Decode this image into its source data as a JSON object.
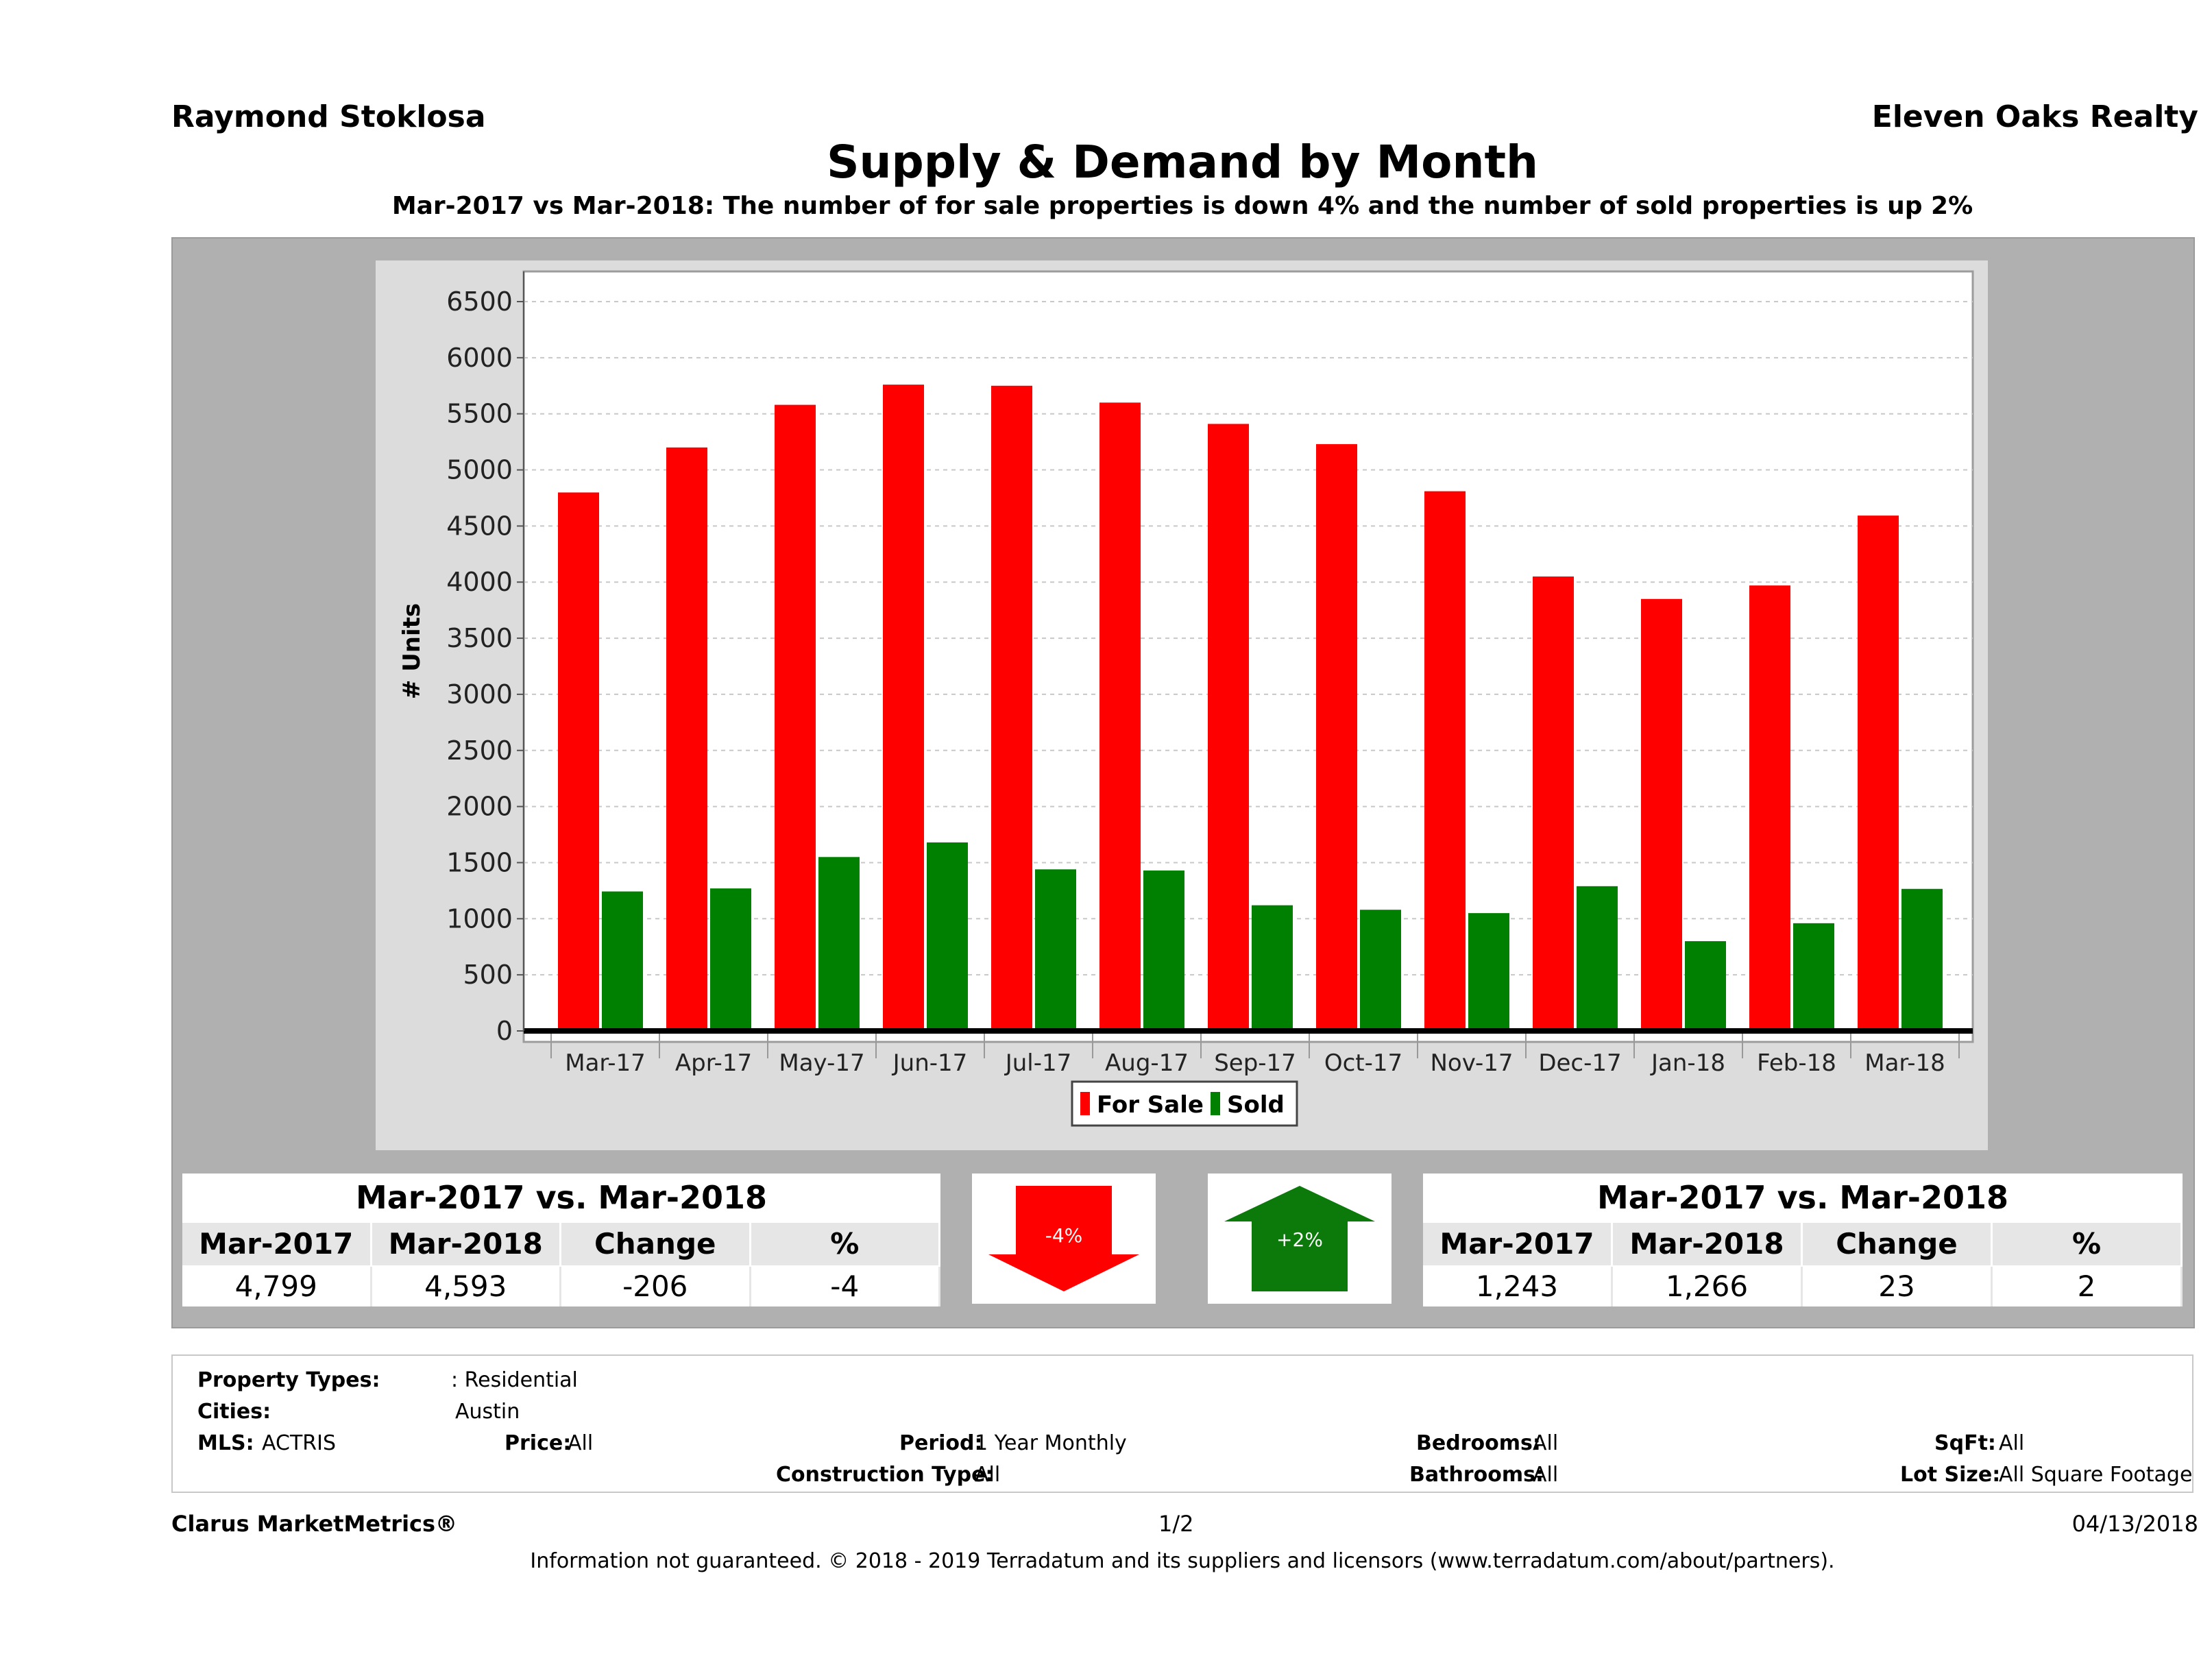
{
  "header": {
    "agent": "Raymond Stoklosa",
    "company": "Eleven Oaks Realty",
    "title": "Supply & Demand by Month",
    "subtitle": "Mar-2017 vs Mar-2018: The number of for sale properties is down 4% and the number of sold properties is up 2%"
  },
  "chart_data": {
    "type": "bar",
    "categories": [
      "Mar-17",
      "Apr-17",
      "May-17",
      "Jun-17",
      "Jul-17",
      "Aug-17",
      "Sep-17",
      "Oct-17",
      "Nov-17",
      "Dec-17",
      "Jan-18",
      "Feb-18",
      "Mar-18"
    ],
    "series": [
      {
        "name": "For Sale",
        "color": "#ff0000",
        "values": [
          4799,
          5200,
          5580,
          5760,
          5750,
          5600,
          5410,
          5230,
          4810,
          4050,
          3850,
          3970,
          4593
        ]
      },
      {
        "name": "Sold",
        "color": "#008000",
        "values": [
          1243,
          1270,
          1550,
          1680,
          1440,
          1430,
          1120,
          1080,
          1050,
          1290,
          800,
          960,
          1266
        ]
      }
    ],
    "ylabel": "# Units",
    "ylim": [
      0,
      6500
    ],
    "yticks": [
      "0",
      "500",
      "1000",
      "1500",
      "2000",
      "2500",
      "3000",
      "3500",
      "4000",
      "4500",
      "5000",
      "5500",
      "6000",
      "6500"
    ],
    "grid": true,
    "legend_position": "bottom"
  },
  "for_sale_stats": {
    "title": "Mar-2017 vs. Mar-2018",
    "headers": [
      "Mar-2017",
      "Mar-2018",
      "Change",
      "%"
    ],
    "values": [
      "4,799",
      "4,593",
      "-206",
      "-4"
    ]
  },
  "sold_stats": {
    "title": "Mar-2017 vs. Mar-2018",
    "headers": [
      "Mar-2017",
      "Mar-2018",
      "Change",
      "%"
    ],
    "values": [
      "1,243",
      "1,266",
      "23",
      "2"
    ]
  },
  "indicators": {
    "down_label": "-4%",
    "up_label": "+2%",
    "down_color": "#ff0000",
    "up_color": "#0b7a0b"
  },
  "criteria": {
    "property_types_label": "Property Types:",
    "property_types_value": ": Residential",
    "cities_label": "Cities:",
    "cities_value": "Austin",
    "mls_label": "MLS:",
    "mls_value": "ACTRIS",
    "price_label": "Price:",
    "price_value": "All",
    "period_label": "Period:",
    "period_value": "1 Year Monthly",
    "construction_label": "Construction Type:",
    "construction_value": "All",
    "bedrooms_label": "Bedrooms:",
    "bedrooms_value": "All",
    "bathrooms_label": "Bathrooms:",
    "bathrooms_value": "All",
    "sqft_label": "SqFt:",
    "sqft_value": "All",
    "lot_label": "Lot Size:",
    "lot_value": "All Square Footage"
  },
  "footer": {
    "brand": "Clarus MarketMetrics®",
    "page": "1/2",
    "date": "04/13/2018",
    "disclaimer": "Information not guaranteed. © 2018 - 2019 Terradatum and its suppliers and licensors (www.terradatum.com/about/partners)."
  }
}
